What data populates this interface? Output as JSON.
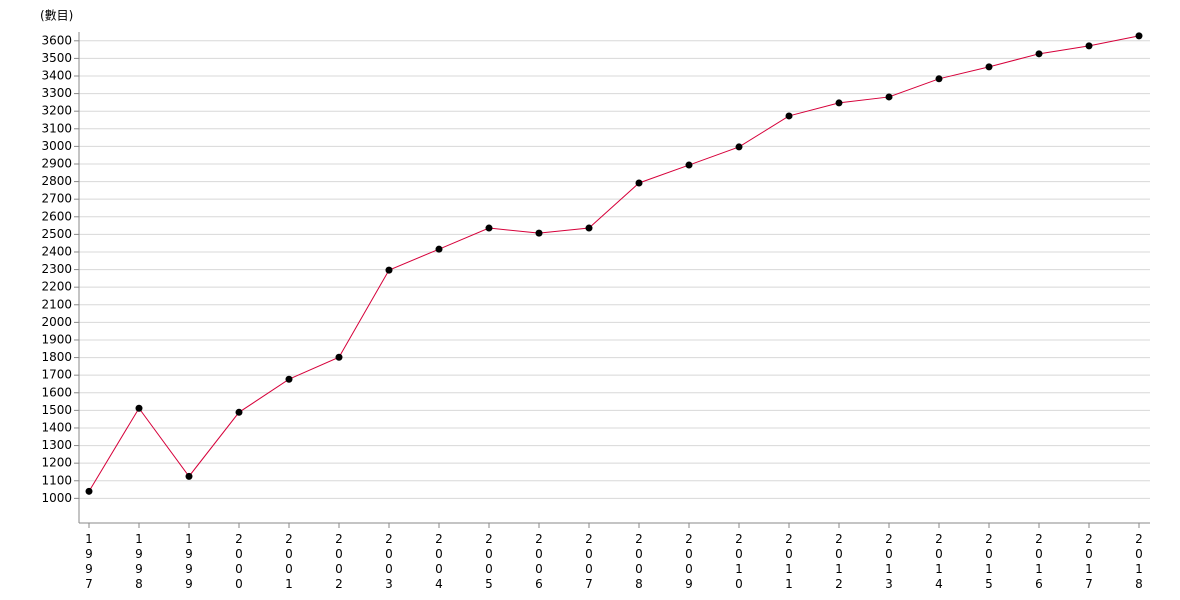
{
  "chart_data": {
    "type": "line",
    "y_label": "(數目)",
    "categories": [
      "1997",
      "1998",
      "1999",
      "2000",
      "2001",
      "2002",
      "2003",
      "2004",
      "2005",
      "2006",
      "2007",
      "2008",
      "2009",
      "2010",
      "2011",
      "2012",
      "2013",
      "2014",
      "2015",
      "2016",
      "2017",
      "2018"
    ],
    "series": [
      {
        "color": "#d6003a",
        "marker_color": "#000000",
        "values": [
          1040,
          1512,
          1125,
          1489,
          1677,
          1802,
          2297,
          2416,
          2536,
          2507,
          2536,
          2792,
          2894,
          2997,
          3173,
          3247,
          3281,
          3384,
          3452,
          3526,
          3571,
          3628
        ]
      }
    ],
    "ylim": [
      860,
      3650
    ],
    "yticks": [
      1000,
      1100,
      1200,
      1300,
      1400,
      1500,
      1600,
      1700,
      1800,
      1900,
      2000,
      2100,
      2200,
      2300,
      2400,
      2500,
      2600,
      2700,
      2800,
      2900,
      3000,
      3100,
      3200,
      3300,
      3400,
      3500,
      3600
    ],
    "grid": true
  }
}
